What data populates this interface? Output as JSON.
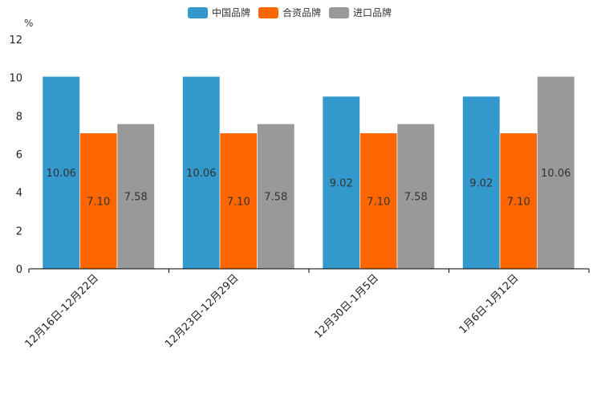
{
  "chart_data": {
    "type": "bar",
    "unit": "%",
    "categories": [
      "12月16日-12月22日",
      "12月23日-12月29日",
      "12月30日-1月5日",
      "1月6日-1月12日"
    ],
    "series": [
      {
        "name": "中国品牌",
        "color": "#3399cc",
        "values": [
          10.06,
          10.06,
          9.02,
          9.02
        ],
        "labels": [
          "10.06",
          "10.06",
          "9.02",
          "9.02"
        ]
      },
      {
        "name": "合资品牌",
        "color": "#ff6600",
        "values": [
          7.1,
          7.1,
          7.1,
          7.1
        ],
        "labels": [
          "7.10",
          "7.10",
          "7.10",
          "7.10"
        ]
      },
      {
        "name": "进口品牌",
        "color": "#999999",
        "values": [
          7.58,
          7.58,
          7.58,
          10.06
        ],
        "labels": [
          "7.58",
          "7.58",
          "7.58",
          "10.06"
        ]
      }
    ],
    "ylim": [
      0,
      12
    ],
    "yticks": [
      "0",
      "2",
      "4",
      "6",
      "8",
      "10",
      "12"
    ],
    "legend": "top-center"
  }
}
